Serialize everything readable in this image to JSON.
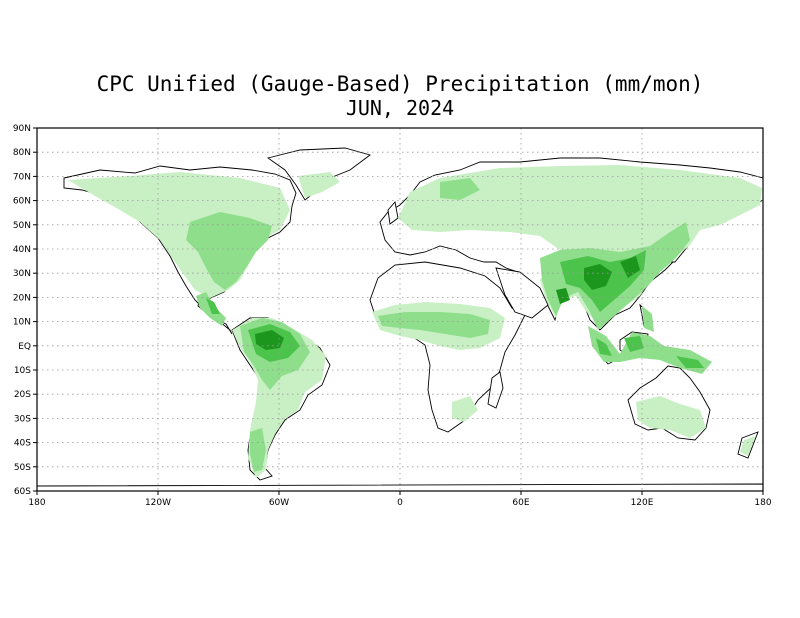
{
  "title": "CPC Unified (Gauge-Based) Precipitation (mm/mon)",
  "subtitle": "JUN, 2024",
  "lat_labels": [
    "90N",
    "80N",
    "70N",
    "60N",
    "50N",
    "40N",
    "30N",
    "20N",
    "10N",
    "EQ",
    "10S",
    "20S",
    "30S",
    "40S",
    "50S",
    "60S"
  ],
  "lon_labels": [
    "180",
    "120W",
    "60W",
    "0",
    "60E",
    "120E",
    "180"
  ],
  "lat_values": [
    90,
    80,
    70,
    60,
    50,
    40,
    30,
    20,
    10,
    0,
    -10,
    -20,
    -30,
    -40,
    -50,
    -60
  ],
  "lon_values": [
    -180,
    -120,
    -60,
    0,
    60,
    120,
    180
  ],
  "colors": {
    "light": "#c8f0c4",
    "medium": "#8fde8c",
    "green": "#4cc44c",
    "dark": "#1c961c",
    "coast": "#000000",
    "grid": "#9a9a9a"
  }
}
